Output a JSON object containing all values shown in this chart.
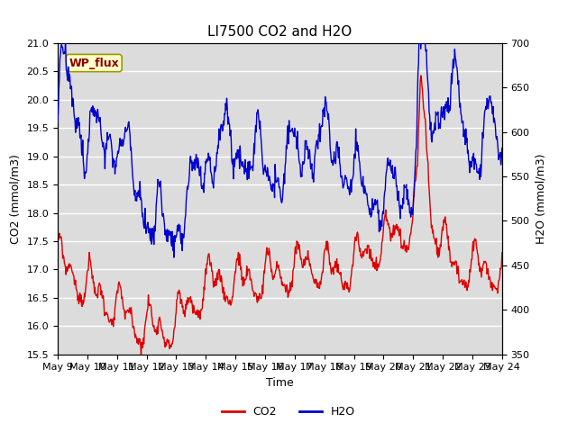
{
  "title": "LI7500 CO2 and H2O",
  "xlabel": "Time",
  "ylabel_left": "CO2 (mmol/m3)",
  "ylabel_right": "H2O (mmol/m3)",
  "ylim_left": [
    15.5,
    21.0
  ],
  "ylim_right": [
    350,
    700
  ],
  "yticks_left": [
    15.5,
    16.0,
    16.5,
    17.0,
    17.5,
    18.0,
    18.5,
    19.0,
    19.5,
    20.0,
    20.5,
    21.0
  ],
  "yticks_right": [
    350,
    400,
    450,
    500,
    550,
    600,
    650,
    700
  ],
  "xtick_labels": [
    "May 9",
    "May 10",
    "May 11",
    "May 12",
    "May 13",
    "May 14",
    "May 15",
    "May 16",
    "May 17",
    "May 18",
    "May 19",
    "May 20",
    "May 21",
    "May 22",
    "May 23",
    "May 24"
  ],
  "co2_color": "#dd0000",
  "h2o_color": "#0000cc",
  "plot_bg": "#dcdcdc",
  "fig_bg": "#ffffff",
  "annotation_text": "WP_flux",
  "annotation_bg": "#ffffcc",
  "annotation_border": "#999900",
  "grid_color": "#ffffff",
  "title_fontsize": 11,
  "axis_fontsize": 9,
  "tick_fontsize": 8,
  "legend_fontsize": 9,
  "line_width": 1.0
}
